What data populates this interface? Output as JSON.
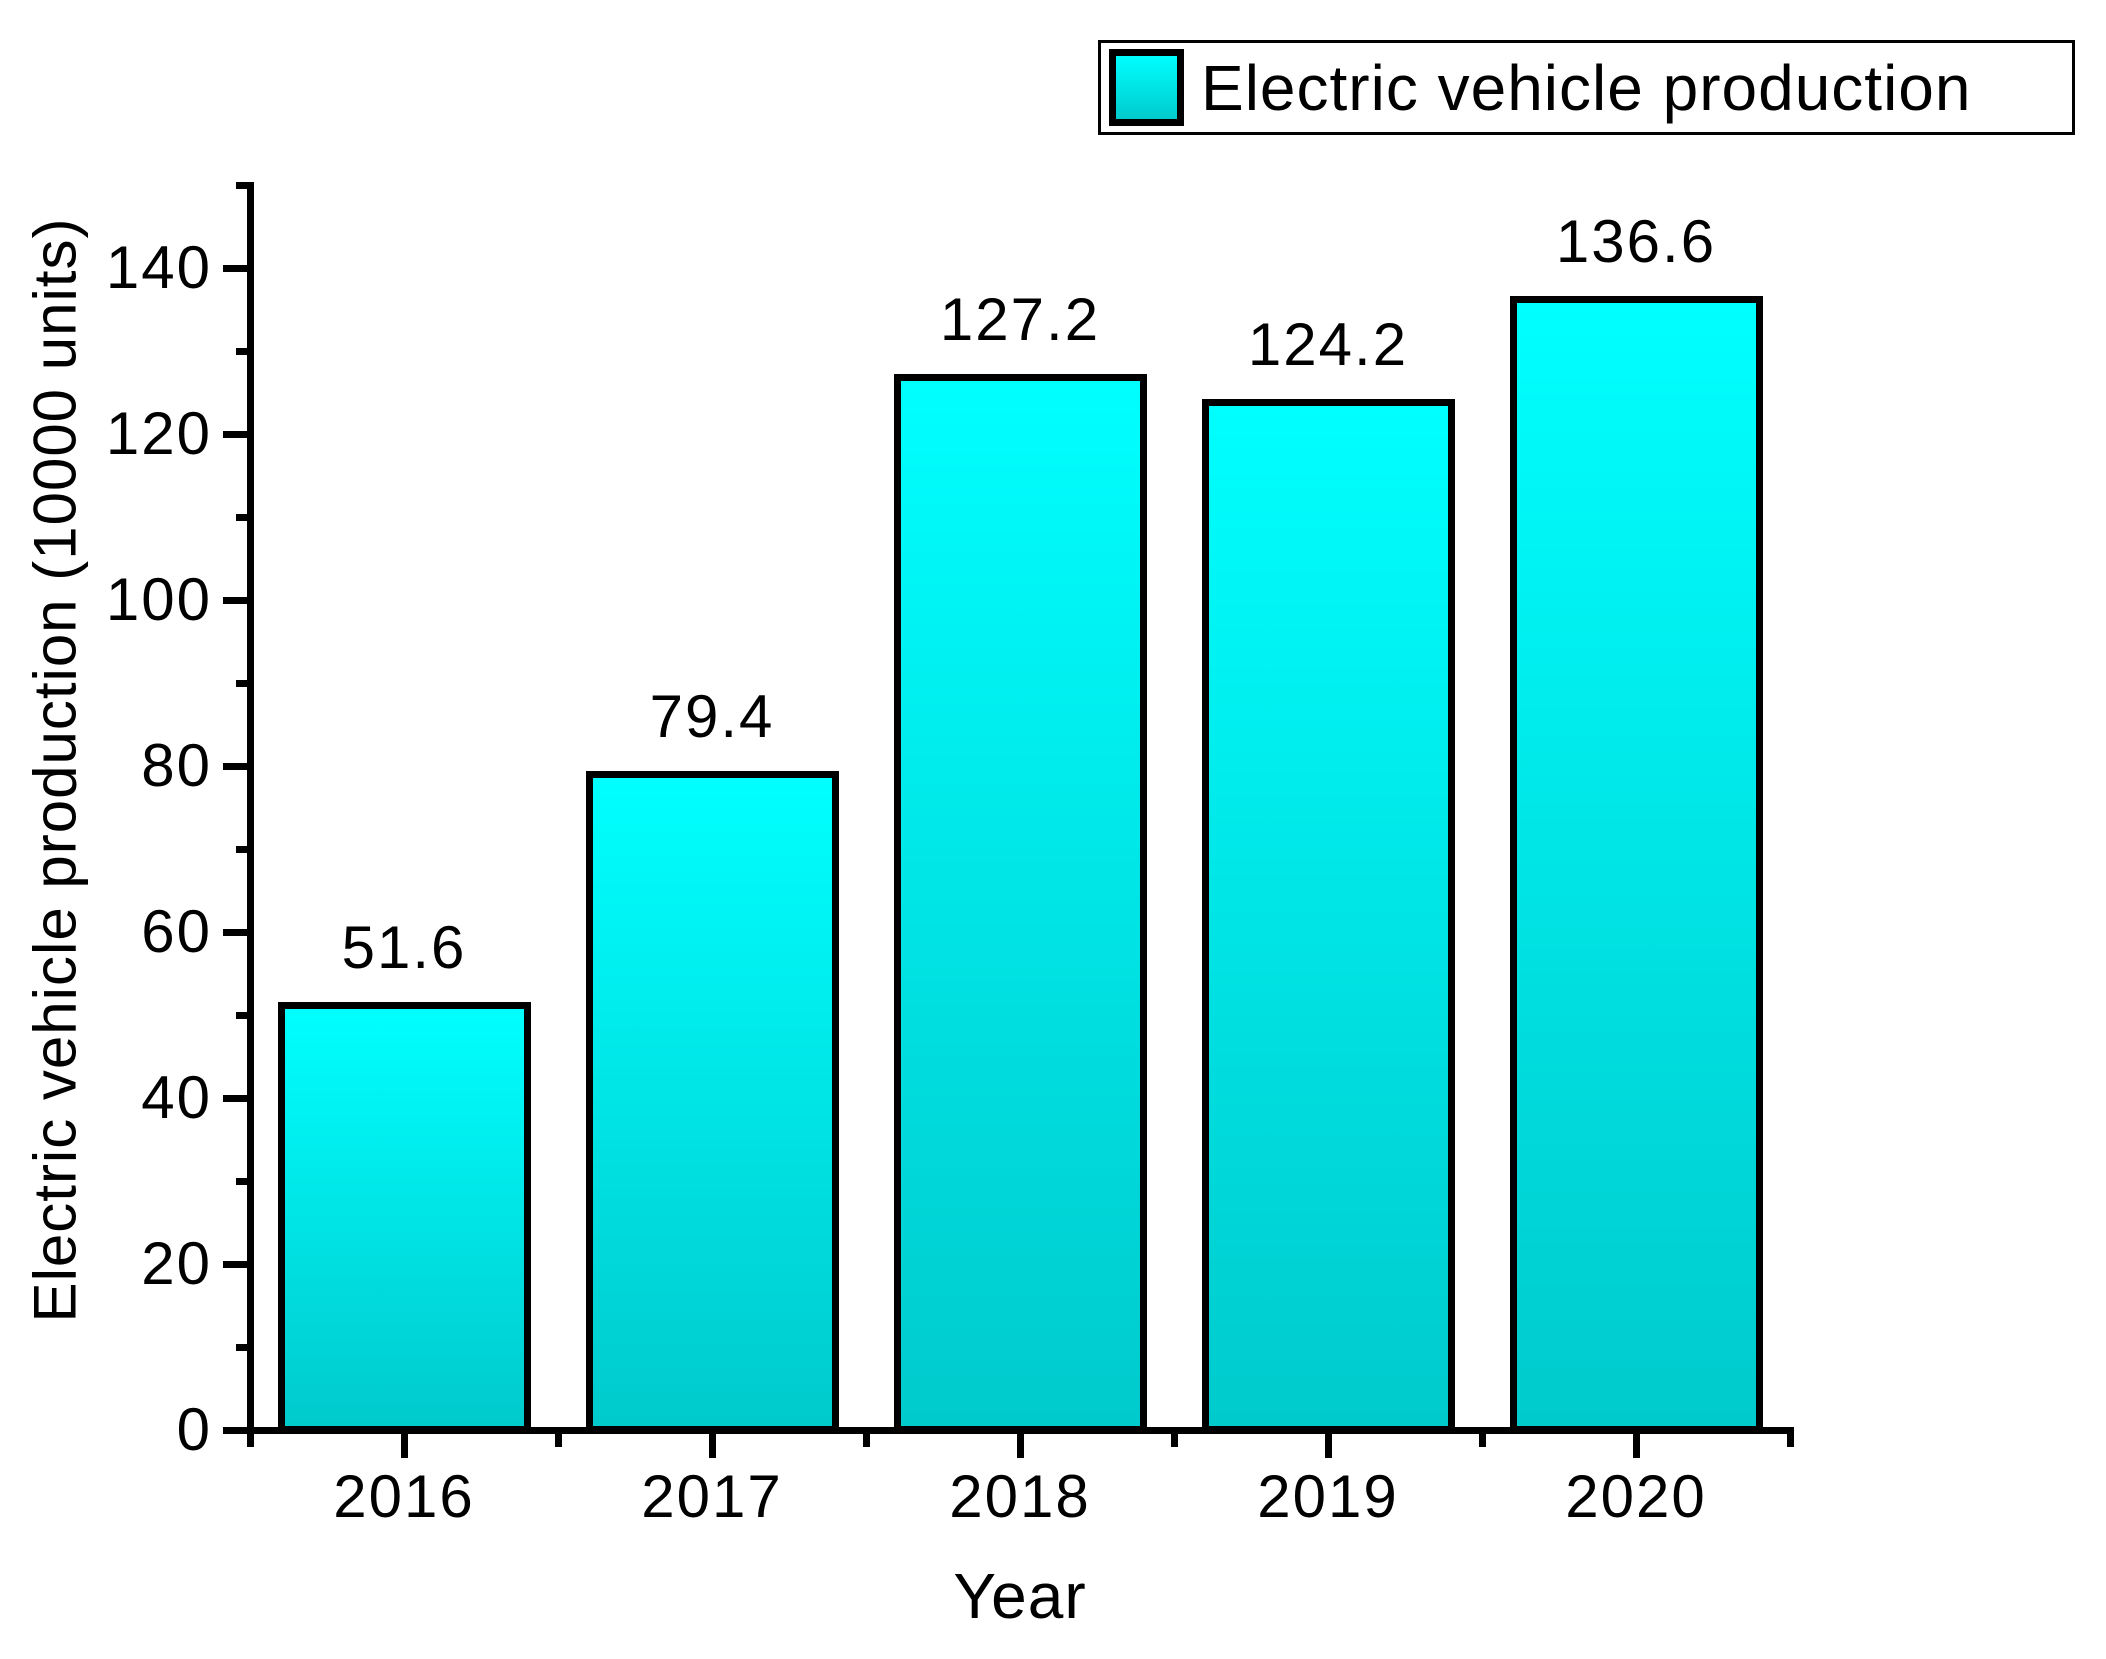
{
  "chart_data": {
    "type": "bar",
    "categories": [
      "2016",
      "2017",
      "2018",
      "2019",
      "2020"
    ],
    "values": [
      51.6,
      79.4,
      127.2,
      124.2,
      136.6
    ],
    "bar_labels": [
      "51.6",
      "79.4",
      "127.2",
      "124.2",
      "136.6"
    ],
    "series": [
      {
        "name": "Electric vehicle production",
        "values": [
          51.6,
          79.4,
          127.2,
          124.2,
          136.6
        ]
      }
    ],
    "title": "",
    "xlabel": "Year",
    "ylabel": "Electric vehicle production (10000 units)",
    "ylim": [
      0,
      150
    ],
    "yticks_major": [
      0,
      20,
      40,
      60,
      80,
      100,
      120,
      140
    ],
    "yticks_minor": [
      10,
      30,
      50,
      70,
      90,
      110,
      130,
      150
    ],
    "ytick_labels": [
      "0",
      "20",
      "40",
      "60",
      "80",
      "100",
      "120",
      "140"
    ],
    "grid": false,
    "legend_position": "top-right",
    "bar_labels_shown": true,
    "colors": {
      "bar_fill_top": "#00FFFF",
      "bar_fill_bottom": "#00CACC",
      "bar_border": "#000000",
      "axis": "#000000",
      "text": "#000000",
      "background": "#FFFFFF"
    }
  },
  "legend": {
    "label": "Electric vehicle production"
  },
  "axes": {
    "x_title": "Year",
    "y_title": "Electric vehicle production (10000 units)"
  }
}
